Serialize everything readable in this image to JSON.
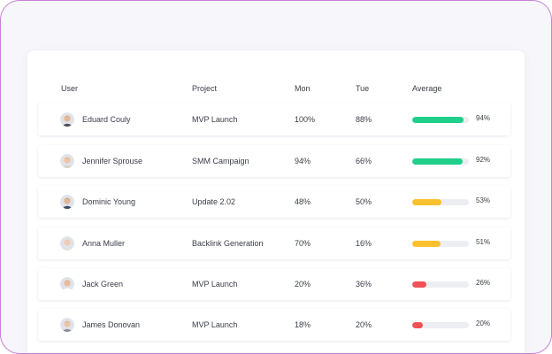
{
  "columns": {
    "user": "User",
    "project": "Project",
    "mon": "Mon",
    "tue": "Tue",
    "average": "Average"
  },
  "colors": {
    "high": "#1fcf8b",
    "mid": "#fbc02d",
    "low": "#ef5257"
  },
  "rows": [
    {
      "name": "Eduard Couly",
      "project": "MVP Launch",
      "mon": "100%",
      "tue": "88%",
      "average": "94%",
      "average_value": 94,
      "level": "high",
      "avatar": {
        "skin": "#e7b898",
        "hair": "#3b2a20",
        "shirt": "#4a4f5c"
      }
    },
    {
      "name": "Jennifer Sprouse",
      "project": "SMM Campaign",
      "mon": "94%",
      "tue": "66%",
      "average": "92%",
      "average_value": 92,
      "level": "high",
      "avatar": {
        "skin": "#efc3a4",
        "hair": "#5a3b22",
        "shirt": "#d9d2c8"
      }
    },
    {
      "name": "Dominic Young",
      "project": "Update 2.02",
      "mon": "48%",
      "tue": "50%",
      "average": "53%",
      "average_value": 53,
      "level": "mid",
      "avatar": {
        "skin": "#e2b595",
        "hair": "#2b2421",
        "shirt": "#3c4a63"
      }
    },
    {
      "name": "Anna Muller",
      "project": "Backlink Generation",
      "mon": "70%",
      "tue": "16%",
      "average": "51%",
      "average_value": 51,
      "level": "mid",
      "avatar": {
        "skin": "#f1cdb5",
        "hair": "#c9a27c",
        "shirt": "#e6e1dc"
      }
    },
    {
      "name": "Jack Green",
      "project": "MVP Launch",
      "mon": "20%",
      "tue": "36%",
      "average": "26%",
      "average_value": 26,
      "level": "low",
      "avatar": {
        "skin": "#e9bc9b",
        "hair": "#6b4a30",
        "shirt": "#ffffff"
      }
    },
    {
      "name": "James Donovan",
      "project": "MVP Launch",
      "mon": "18%",
      "tue": "20%",
      "average": "20%",
      "average_value": 20,
      "level": "low",
      "avatar": {
        "skin": "#eac4a8",
        "hair": "#4a3a30",
        "shirt": "#8a8f99"
      }
    }
  ]
}
